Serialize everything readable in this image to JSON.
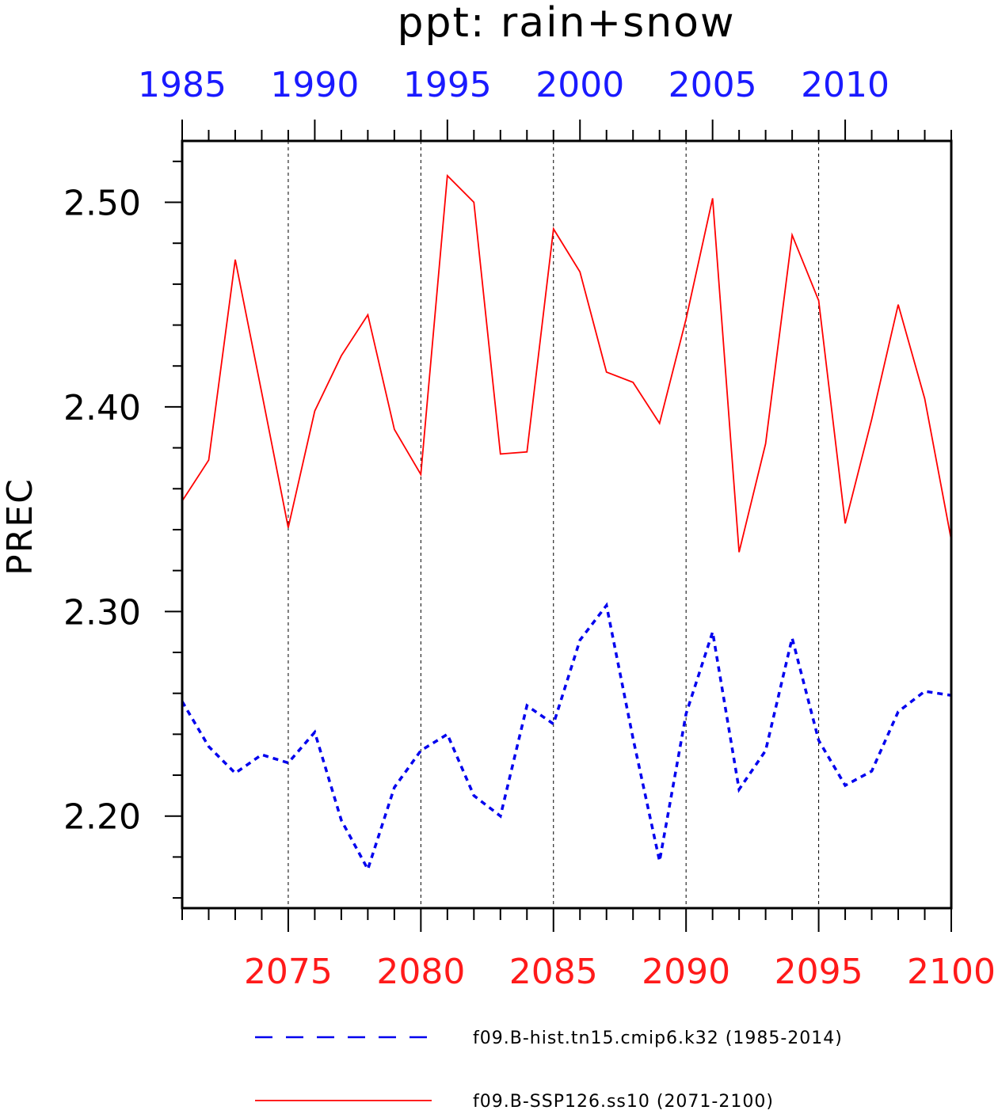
{
  "chart_data": {
    "type": "line",
    "title": "ppt: rain+snow",
    "ylabel": "PREC",
    "ylim": [
      2.155,
      2.53
    ],
    "y_ticks_major": [
      "2.20",
      "2.30",
      "2.40",
      "2.50"
    ],
    "grid": "vertical dashed lines at major bottom-axis ticks",
    "legend_position": "bottom",
    "colors": {
      "hist": "#0000ee",
      "ssp": "#ff0000",
      "top_axis_labels": "#1a1aff",
      "bottom_axis_labels": "#ff1a1a"
    },
    "top_axis": {
      "xlim": [
        1985,
        2014
      ],
      "tick_labels": [
        "1985",
        "1990",
        "1995",
        "2000",
        "2005",
        "2010"
      ]
    },
    "bottom_axis": {
      "xlim": [
        2071,
        2100
      ],
      "tick_labels": [
        "2075",
        "2080",
        "2085",
        "2090",
        "2095",
        "2100"
      ]
    },
    "series": [
      {
        "name": "f09.B-hist.tn15.cmip6.k32 (1985-2014)",
        "axis": "top",
        "style": "dashed",
        "x": [
          1985,
          1986,
          1987,
          1988,
          1989,
          1990,
          1991,
          1992,
          1993,
          1994,
          1995,
          1996,
          1997,
          1998,
          1999,
          2000,
          2001,
          2002,
          2003,
          2004,
          2005,
          2006,
          2007,
          2008,
          2009,
          2010,
          2011,
          2012,
          2013,
          2014
        ],
        "values": [
          2.256,
          2.234,
          2.221,
          2.23,
          2.226,
          2.241,
          2.198,
          2.174,
          2.214,
          2.232,
          2.24,
          2.21,
          2.2,
          2.254,
          2.245,
          2.286,
          2.303,
          2.238,
          2.178,
          2.25,
          2.29,
          2.213,
          2.232,
          2.287,
          2.237,
          2.215,
          2.222,
          2.251,
          2.261,
          2.259
        ]
      },
      {
        "name": "f09.B-SSP126.ss10 (2071-2100)",
        "axis": "bottom",
        "style": "solid",
        "x": [
          2071,
          2072,
          2073,
          2074,
          2075,
          2076,
          2077,
          2078,
          2079,
          2080,
          2081,
          2082,
          2083,
          2084,
          2085,
          2086,
          2087,
          2088,
          2089,
          2090,
          2091,
          2092,
          2093,
          2094,
          2095,
          2096,
          2097,
          2098,
          2099,
          2100
        ],
        "values": [
          2.354,
          2.374,
          2.472,
          2.407,
          2.341,
          2.398,
          2.425,
          2.445,
          2.389,
          2.367,
          2.513,
          2.5,
          2.377,
          2.378,
          2.487,
          2.466,
          2.417,
          2.412,
          2.392,
          2.443,
          2.502,
          2.329,
          2.382,
          2.484,
          2.452,
          2.343,
          2.394,
          2.45,
          2.404,
          2.335
        ]
      }
    ]
  }
}
